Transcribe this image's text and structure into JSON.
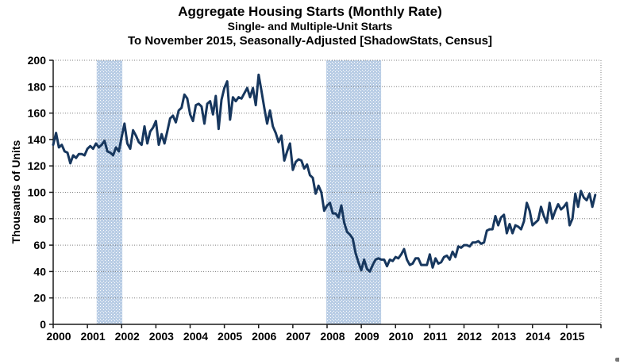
{
  "titles": {
    "line1": "Aggregate Housing Starts (Monthly Rate)",
    "line2": "Single- and Multiple-Unit Starts",
    "line3": "To November 2015, Seasonally-Adjusted [ShadowStats, Census]"
  },
  "chart_data": {
    "type": "line",
    "title": "Aggregate Housing Starts (Monthly Rate)",
    "subtitle": "Single- and Multiple-Unit Starts",
    "subtitle2": "To November 2015, Seasonally-Adjusted [ShadowStats, Census]",
    "xlabel": "",
    "ylabel": "Thousands of Units",
    "ylim": [
      0,
      200
    ],
    "xlim": [
      2000,
      2016
    ],
    "y_ticks": [
      0,
      20,
      40,
      60,
      80,
      100,
      120,
      140,
      160,
      180,
      200
    ],
    "x_ticks": [
      2000,
      2001,
      2002,
      2003,
      2004,
      2005,
      2006,
      2007,
      2008,
      2009,
      2010,
      2011,
      2012,
      2013,
      2014,
      2015
    ],
    "grid": "horizontal-dotted",
    "legend": "none",
    "shaded_bands": [
      {
        "label": "recession",
        "from": 2001.27,
        "to": 2002.02
      },
      {
        "label": "recession",
        "from": 2007.98,
        "to": 2009.58
      }
    ],
    "series": [
      {
        "name": "Aggregate Housing Starts",
        "frequency": "monthly",
        "start_year": 2000,
        "start_month": 1,
        "end_label": "November 2015",
        "values": [
          136,
          145,
          134,
          136,
          131,
          130,
          122,
          128,
          126,
          129,
          129,
          128,
          133,
          135,
          133,
          137,
          134,
          136,
          139,
          131,
          130,
          128,
          134,
          131,
          142,
          152,
          137,
          133,
          147,
          143,
          138,
          136,
          150,
          137,
          146,
          149,
          154,
          136,
          144,
          137,
          146,
          156,
          158,
          153,
          162,
          164,
          174,
          171,
          159,
          154,
          166,
          167,
          165,
          152,
          167,
          169,
          159,
          173,
          148,
          170,
          179,
          184,
          155,
          172,
          169,
          172,
          171,
          175,
          179,
          172,
          179,
          166,
          189,
          177,
          164,
          152,
          162,
          150,
          145,
          138,
          143,
          124,
          131,
          137,
          117,
          123,
          125,
          124,
          118,
          121,
          113,
          111,
          99,
          105,
          100,
          86,
          90,
          92,
          84,
          84,
          81,
          90,
          77,
          70,
          68,
          65,
          54,
          47,
          41,
          49,
          42,
          40,
          45,
          49,
          50,
          49,
          49,
          44,
          49,
          48,
          51,
          50,
          53,
          57,
          49,
          45,
          46,
          50,
          50,
          45,
          45,
          45,
          53,
          43,
          50,
          46,
          47,
          51,
          52,
          49,
          55,
          51,
          59,
          58,
          60,
          60,
          59,
          62,
          62,
          63,
          61,
          62,
          71,
          72,
          72,
          82,
          75,
          81,
          83,
          69,
          76,
          69,
          75,
          74,
          72,
          78,
          92,
          86,
          75,
          77,
          79,
          89,
          82,
          77,
          92,
          80,
          86,
          91,
          87,
          89,
          92,
          75,
          80,
          99,
          89,
          101,
          96,
          94,
          99,
          89,
          98
        ]
      }
    ],
    "colors": {
      "line": "#17375E",
      "band": "#B9CDE5",
      "band_dot": "#FFFFFF",
      "grid": "#7F7F7F",
      "axis": "#1A1A1A",
      "text": "#000000",
      "background": "#FFFFFF"
    }
  }
}
